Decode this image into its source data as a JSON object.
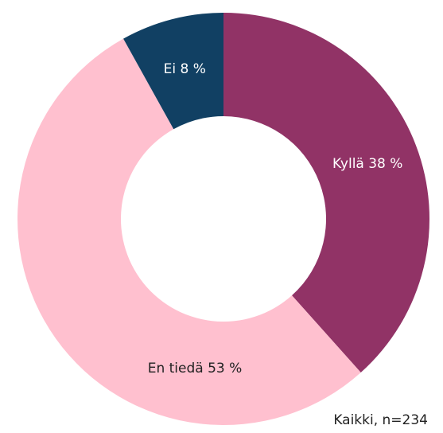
{
  "chart_data": {
    "type": "donut",
    "values": [
      38,
      53,
      8
    ],
    "value_labels": [
      "Kyllä 38 %",
      "En tiedä 53 %",
      "Ei 8 %"
    ],
    "colors": [
      "#913366",
      "#ffc0cf",
      "#114063"
    ],
    "label_colors": [
      "#ffffff",
      "#222222",
      "#ffffff"
    ],
    "note": "Kaikki, n=234"
  }
}
